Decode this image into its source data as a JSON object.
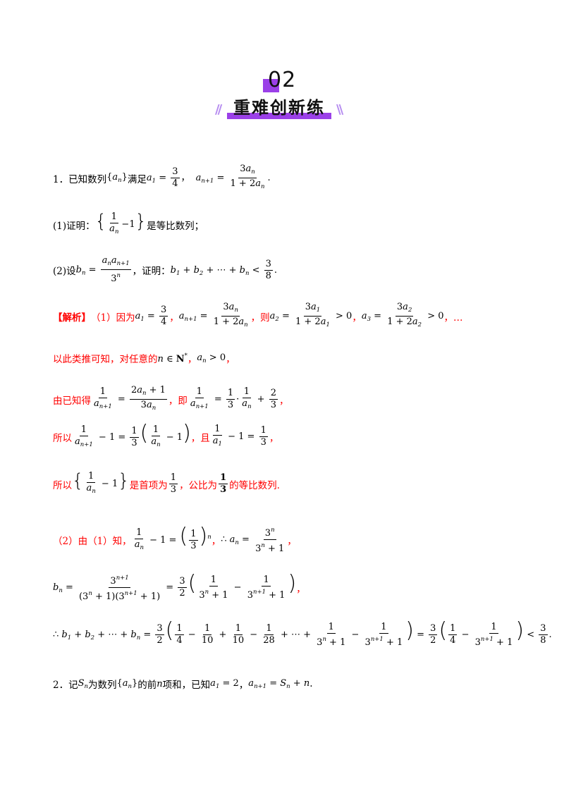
{
  "header": {
    "number": "02",
    "title": "重难创新练",
    "slash_left": "//",
    "slash_right": "\\\\"
  },
  "q1": {
    "stem_prefix": "1．已知数列",
    "stem_mid": "满足",
    "part1_prefix": "(1)证明：",
    "part1_suffix": "是等比数列；",
    "part2_prefix": "(2)设",
    "part2_mid": "，证明："
  },
  "solution": {
    "tag": "【解析】",
    "step1_prefix": "（1）因为",
    "then": "，则",
    "ellipsis": "，…",
    "step2_prefix": "以此类推可知，对任意的",
    "step3_prefix": "由已知得",
    "step3_mid": "，即",
    "step4_prefix": "所以",
    "step4_mid": "，且",
    "step5_prefix": "所以",
    "step5_mid1": "是首项为",
    "step5_mid2": "，公比为",
    "step5_suffix": "的等比数列.",
    "step6_prefix": "（2）由（1）知，"
  },
  "q2": {
    "prefix": "2．记",
    "mid1": "为数列",
    "mid2": "的前",
    "mid3": "项和，已知"
  }
}
